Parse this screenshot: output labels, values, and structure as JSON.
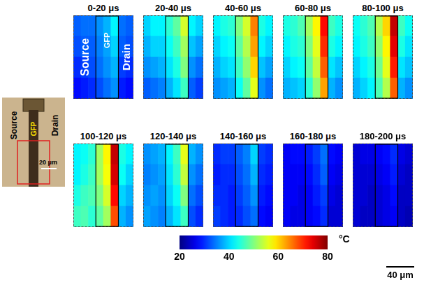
{
  "chart_data": {
    "type": "heatmap",
    "panels": [
      {
        "title": "0-20 μs",
        "cells": [
          [
            33,
            34,
            34,
            36,
            38,
            42,
            34,
            33
          ],
          [
            32,
            33,
            33,
            35,
            37,
            40,
            33,
            32
          ],
          [
            30,
            31,
            32,
            34,
            36,
            38,
            31,
            30
          ],
          [
            28,
            29,
            30,
            32,
            34,
            36,
            29,
            28
          ]
        ]
      },
      {
        "title": "20-40 μs",
        "cells": [
          [
            40,
            42,
            42,
            45,
            48,
            55,
            42,
            40
          ],
          [
            38,
            40,
            40,
            43,
            46,
            52,
            39,
            37
          ],
          [
            36,
            37,
            38,
            41,
            44,
            50,
            36,
            34
          ],
          [
            33,
            34,
            35,
            38,
            41,
            46,
            33,
            31
          ]
        ]
      },
      {
        "title": "40-60 μs",
        "cells": [
          [
            42,
            44,
            45,
            50,
            55,
            65,
            44,
            42
          ],
          [
            40,
            42,
            43,
            48,
            53,
            63,
            42,
            40
          ],
          [
            38,
            40,
            41,
            46,
            51,
            60,
            39,
            37
          ],
          [
            36,
            37,
            38,
            43,
            48,
            56,
            36,
            34
          ]
        ]
      },
      {
        "title": "60-80 μs",
        "cells": [
          [
            44,
            45,
            47,
            52,
            58,
            72,
            46,
            44
          ],
          [
            42,
            44,
            45,
            50,
            56,
            70,
            44,
            42
          ],
          [
            40,
            42,
            43,
            48,
            54,
            67,
            41,
            39
          ],
          [
            38,
            39,
            40,
            45,
            51,
            63,
            38,
            36
          ]
        ]
      },
      {
        "title": "80-100 μs",
        "cells": [
          [
            43,
            45,
            47,
            53,
            60,
            76,
            46,
            43
          ],
          [
            42,
            44,
            46,
            51,
            58,
            74,
            44,
            41
          ],
          [
            40,
            42,
            44,
            49,
            56,
            71,
            41,
            39
          ],
          [
            38,
            40,
            42,
            47,
            53,
            67,
            38,
            36
          ]
        ]
      },
      {
        "title": "100-120 μs",
        "cells": [
          [
            42,
            43,
            45,
            52,
            58,
            76,
            44,
            42
          ],
          [
            42,
            44,
            46,
            52,
            57,
            75,
            43,
            40
          ],
          [
            44,
            46,
            47,
            50,
            55,
            72,
            40,
            38
          ],
          [
            46,
            47,
            45,
            48,
            52,
            68,
            38,
            36
          ]
        ]
      },
      {
        "title": "120-140 μs",
        "cells": [
          [
            36,
            37,
            38,
            42,
            46,
            56,
            38,
            36
          ],
          [
            35,
            36,
            37,
            41,
            45,
            54,
            36,
            34
          ],
          [
            36,
            37,
            36,
            40,
            43,
            50,
            34,
            32
          ],
          [
            37,
            36,
            35,
            38,
            41,
            46,
            32,
            30
          ]
        ]
      },
      {
        "title": "140-160 μs",
        "cells": [
          [
            30,
            31,
            31,
            33,
            35,
            40,
            31,
            30
          ],
          [
            29,
            30,
            30,
            32,
            34,
            38,
            30,
            29
          ],
          [
            30,
            30,
            29,
            31,
            33,
            36,
            29,
            28
          ],
          [
            31,
            30,
            29,
            30,
            32,
            34,
            28,
            27
          ]
        ]
      },
      {
        "title": "160-180 μs",
        "cells": [
          [
            27,
            28,
            28,
            29,
            31,
            34,
            28,
            27
          ],
          [
            27,
            27,
            27,
            28,
            30,
            33,
            27,
            26
          ],
          [
            27,
            27,
            26,
            27,
            29,
            31,
            26,
            25
          ],
          [
            27,
            26,
            26,
            27,
            28,
            30,
            25,
            25
          ]
        ]
      },
      {
        "title": "180-200 μs",
        "cells": [
          [
            25,
            26,
            26,
            27,
            28,
            30,
            26,
            25
          ],
          [
            25,
            25,
            25,
            26,
            27,
            29,
            25,
            24
          ],
          [
            25,
            25,
            24,
            25,
            26,
            28,
            24,
            24
          ],
          [
            25,
            24,
            24,
            25,
            26,
            27,
            24,
            23
          ]
        ]
      }
    ],
    "panel_labels": [
      "Source",
      "GFP",
      "Drain"
    ],
    "colorbar": {
      "range": [
        20,
        80
      ],
      "ticks": [
        20,
        40,
        60,
        80
      ],
      "label": "°C"
    },
    "scale_bar": "40 μm",
    "tick_labels": false
  },
  "photo": {
    "labels": [
      "Source",
      "GFP",
      "Drain"
    ],
    "scale_bar": "20 μm"
  }
}
